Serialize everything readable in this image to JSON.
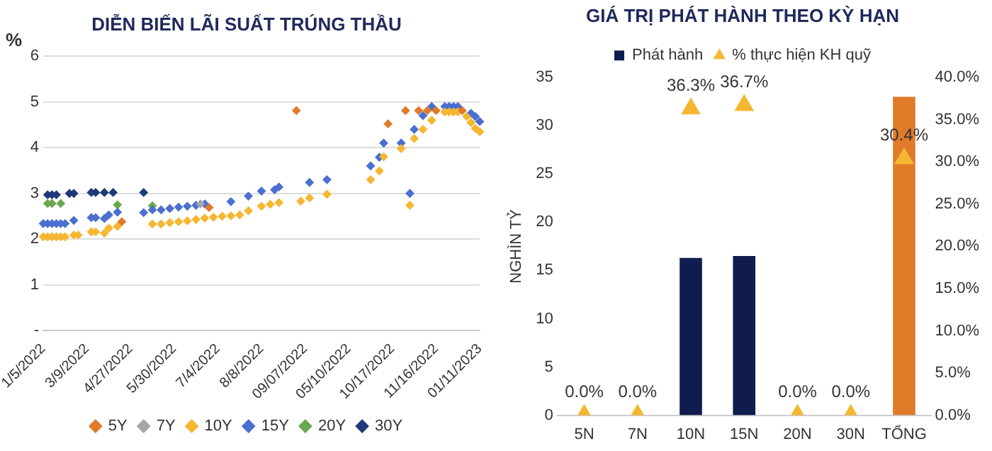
{
  "chart_data": [
    {
      "type": "scatter",
      "title": "DIỄN BIẾN LÃI SUẤT TRÚNG THẦU",
      "ylabel": "%",
      "categories": [
        "1/5/2022",
        null,
        null,
        null,
        null,
        null,
        null,
        null,
        null,
        null,
        "3/9/2022",
        null,
        null,
        null,
        null,
        null,
        null,
        null,
        null,
        null,
        "4/27/2022",
        null,
        null,
        null,
        null,
        null,
        null,
        null,
        null,
        null,
        "5/30/2022",
        null,
        null,
        null,
        null,
        null,
        null,
        null,
        null,
        null,
        "7/4/2022",
        null,
        null,
        null,
        null,
        null,
        null,
        null,
        null,
        null,
        "8/8/2022",
        null,
        null,
        null,
        null,
        null,
        null,
        null,
        null,
        null,
        "09/07/2022",
        null,
        null,
        null,
        null,
        null,
        null,
        null,
        null,
        null,
        "05/10/2022",
        null,
        null,
        null,
        null,
        null,
        null,
        null,
        null,
        null,
        "10/17/2022",
        null,
        null,
        null,
        null,
        null,
        null,
        null,
        null,
        null,
        "11/16/2022",
        null,
        null,
        null,
        null,
        null,
        null,
        null,
        null,
        null,
        "01/11/2023"
      ],
      "series": [
        {
          "name": "5Y",
          "color": "#e07b2a",
          "values": [
            null,
            null,
            null,
            null,
            null,
            null,
            null,
            null,
            null,
            null,
            null,
            null,
            null,
            null,
            null,
            null,
            null,
            null,
            2.38,
            null,
            null,
            null,
            null,
            null,
            null,
            null,
            null,
            null,
            null,
            null,
            null,
            null,
            null,
            null,
            null,
            null,
            null,
            null,
            2.69,
            null,
            null,
            null,
            null,
            null,
            null,
            null,
            null,
            null,
            null,
            null,
            null,
            null,
            null,
            null,
            null,
            null,
            null,
            null,
            4.81,
            null,
            null,
            null,
            null,
            null,
            null,
            null,
            null,
            null,
            null,
            null,
            null,
            null,
            null,
            null,
            null,
            null,
            null,
            null,
            null,
            4.52,
            null,
            null,
            null,
            4.81,
            null,
            null,
            4.81,
            null,
            4.81,
            null,
            4.81,
            null,
            null,
            null,
            null,
            null,
            4.81,
            null,
            null,
            null,
            null
          ]
        },
        {
          "name": "7Y",
          "color": "#a5a5a5",
          "values": [
            null,
            null,
            null,
            null,
            null,
            null,
            null,
            null,
            null,
            null,
            null,
            null,
            null,
            null,
            null,
            null,
            null,
            null,
            null,
            null,
            null,
            null,
            null,
            null,
            null,
            null,
            null,
            null,
            null,
            null,
            null,
            null,
            null,
            null,
            null,
            null,
            2.77,
            null,
            null,
            null,
            null,
            null,
            null,
            null,
            null,
            null,
            null,
            null,
            null,
            null,
            null,
            null,
            null,
            null,
            null,
            null,
            null,
            null,
            null,
            null,
            null,
            null,
            null,
            null,
            null,
            null,
            null,
            null,
            null,
            null,
            null,
            null,
            null,
            null,
            null,
            null,
            null,
            null,
            null,
            null,
            null,
            null,
            null,
            null,
            null,
            null,
            null,
            null,
            null,
            null,
            null,
            null,
            null,
            null,
            null,
            null,
            null,
            null,
            null,
            null,
            null
          ]
        },
        {
          "name": "10Y",
          "color": "#f5b731",
          "values": [
            2.05,
            2.05,
            2.05,
            2.05,
            2.05,
            2.05,
            null,
            2.09,
            2.09,
            null,
            null,
            2.16,
            2.16,
            null,
            2.13,
            2.24,
            null,
            2.28,
            null,
            null,
            null,
            null,
            null,
            null,
            null,
            2.33,
            null,
            2.33,
            null,
            2.36,
            null,
            2.38,
            null,
            2.4,
            null,
            2.43,
            null,
            2.46,
            null,
            2.48,
            null,
            2.5,
            null,
            2.51,
            null,
            2.53,
            null,
            2.62,
            null,
            null,
            2.72,
            null,
            2.76,
            null,
            2.8,
            null,
            null,
            null,
            null,
            2.83,
            null,
            2.9,
            null,
            null,
            null,
            2.98,
            null,
            null,
            null,
            null,
            null,
            null,
            null,
            null,
            null,
            3.3,
            null,
            3.49,
            3.8,
            null,
            null,
            null,
            3.98,
            null,
            2.74,
            4.2,
            null,
            4.4,
            null,
            4.6,
            null,
            null,
            4.78,
            4.78,
            4.78,
            4.78,
            null,
            4.68,
            4.55,
            4.42,
            4.35
          ]
        },
        {
          "name": "15Y",
          "color": "#4a6fd0",
          "values": [
            2.34,
            2.34,
            2.34,
            2.34,
            2.34,
            2.34,
            null,
            2.41,
            null,
            null,
            null,
            2.47,
            2.47,
            null,
            2.45,
            2.53,
            null,
            2.59,
            null,
            null,
            null,
            null,
            null,
            2.58,
            null,
            2.64,
            null,
            2.64,
            null,
            2.67,
            null,
            2.7,
            null,
            2.72,
            null,
            2.74,
            null,
            2.77,
            null,
            null,
            null,
            null,
            null,
            2.82,
            null,
            null,
            null,
            2.94,
            null,
            null,
            3.05,
            null,
            null,
            3.08,
            3.14,
            null,
            null,
            null,
            null,
            null,
            null,
            3.24,
            null,
            null,
            null,
            3.3,
            null,
            null,
            null,
            null,
            null,
            null,
            null,
            null,
            null,
            3.6,
            null,
            3.79,
            4.1,
            null,
            null,
            null,
            4.1,
            null,
            3,
            4.4,
            null,
            4.7,
            null,
            4.9,
            null,
            null,
            4.9,
            4.9,
            4.9,
            4.9,
            null,
            null,
            4.75,
            4.68,
            4.57
          ]
        },
        {
          "name": "20Y",
          "color": "#6aa84f",
          "values": [
            null,
            2.78,
            2.78,
            null,
            2.78,
            null,
            null,
            null,
            null,
            null,
            null,
            null,
            null,
            null,
            null,
            null,
            null,
            2.75,
            null,
            null,
            null,
            null,
            null,
            null,
            null,
            2.73,
            null,
            null,
            null,
            null,
            null,
            null,
            null,
            null,
            null,
            null,
            null,
            null,
            null,
            null,
            null,
            null,
            null,
            null,
            null,
            null,
            null,
            null,
            null,
            null,
            null,
            null,
            null,
            null,
            null,
            null,
            null,
            null,
            null,
            null,
            null,
            null,
            null,
            null,
            null,
            null,
            null,
            null,
            null,
            null,
            null,
            null,
            null,
            null,
            null,
            null,
            null,
            null,
            null,
            null,
            null,
            null,
            null,
            null,
            null,
            null,
            null,
            null,
            null,
            null,
            null,
            null,
            null,
            null,
            null,
            null,
            null,
            null,
            null,
            null,
            null
          ]
        },
        {
          "name": "30Y",
          "color": "#1f3a7a",
          "values": [
            null,
            2.97,
            2.97,
            2.97,
            null,
            null,
            3,
            3,
            null,
            null,
            null,
            3.02,
            3.02,
            null,
            3.02,
            null,
            3.02,
            null,
            null,
            null,
            null,
            null,
            null,
            3.02,
            null,
            null,
            null,
            null,
            null,
            null,
            null,
            null,
            null,
            null,
            null,
            null,
            null,
            null,
            null,
            null,
            null,
            null,
            null,
            null,
            null,
            null,
            null,
            null,
            null,
            null,
            null,
            null,
            null,
            null,
            null,
            null,
            null,
            null,
            null,
            null,
            null,
            null,
            null,
            null,
            null,
            null,
            null,
            null,
            null,
            null,
            null,
            null,
            null,
            null,
            null,
            null,
            null,
            null,
            null,
            null,
            null,
            null,
            null,
            null,
            null,
            null,
            null,
            null,
            null,
            null,
            null,
            null,
            null,
            null,
            null,
            null,
            null,
            null,
            null,
            null,
            null
          ]
        }
      ],
      "ylim": [
        0,
        6
      ],
      "yticks": [
        {
          "value": 0,
          "label": "-"
        },
        1,
        2,
        3,
        4,
        5,
        6
      ],
      "grid": "y",
      "legend": "bottom",
      "marker": "diamond"
    },
    {
      "type": "bar",
      "title": "GIÁ TRỊ PHÁT HÀNH THEO KỲ HẠN",
      "ylabel": "NGHÌN TỶ",
      "categories": [
        "5N",
        "7N",
        "10N",
        "15N",
        "20N",
        "30N",
        "TỔNG"
      ],
      "series": [
        {
          "name": "Phát hành",
          "color": "#0f1c4d",
          "colors": [
            "#0f1c4d",
            "#0f1c4d",
            "#0f1c4d",
            "#0f1c4d",
            "#0f1c4d",
            "#0f1c4d",
            "#e07b2a"
          ],
          "values": [
            0,
            0,
            16.3,
            16.5,
            0,
            0,
            33
          ]
        },
        {
          "type": "scatter",
          "name": "% thực hiện KH quỹ",
          "color": "#f5b731",
          "axis": "y2",
          "marker": "triangle",
          "x": [
            "5N",
            "7N",
            "10N",
            "15N",
            "20N",
            "30N",
            "TỔNG"
          ],
          "values": [
            0,
            0,
            36.3,
            36.7,
            0,
            0,
            30.4
          ],
          "value_labels": [
            "0.0%",
            "0.0%",
            "36.3%",
            "36.7%",
            "0.0%",
            "0.0%",
            "30.4%"
          ]
        }
      ],
      "ylim": [
        0,
        35
      ],
      "yticks": [
        0,
        5,
        10,
        15,
        20,
        25,
        30,
        35
      ],
      "y2lim": [
        0,
        40
      ],
      "y2ticks": [
        {
          "value": 0,
          "label": "0.0%"
        },
        {
          "value": 5,
          "label": "5.0%"
        },
        {
          "value": 10,
          "label": "10.0%"
        },
        {
          "value": 15,
          "label": "15.0%"
        },
        {
          "value": 20,
          "label": "20.0%"
        },
        {
          "value": 25,
          "label": "25.0%"
        },
        {
          "value": 30,
          "label": "30.0%"
        },
        {
          "value": 35,
          "label": "35.0%"
        },
        {
          "value": 40,
          "label": "40.0%"
        }
      ],
      "grid": false,
      "legend": "top"
    }
  ]
}
